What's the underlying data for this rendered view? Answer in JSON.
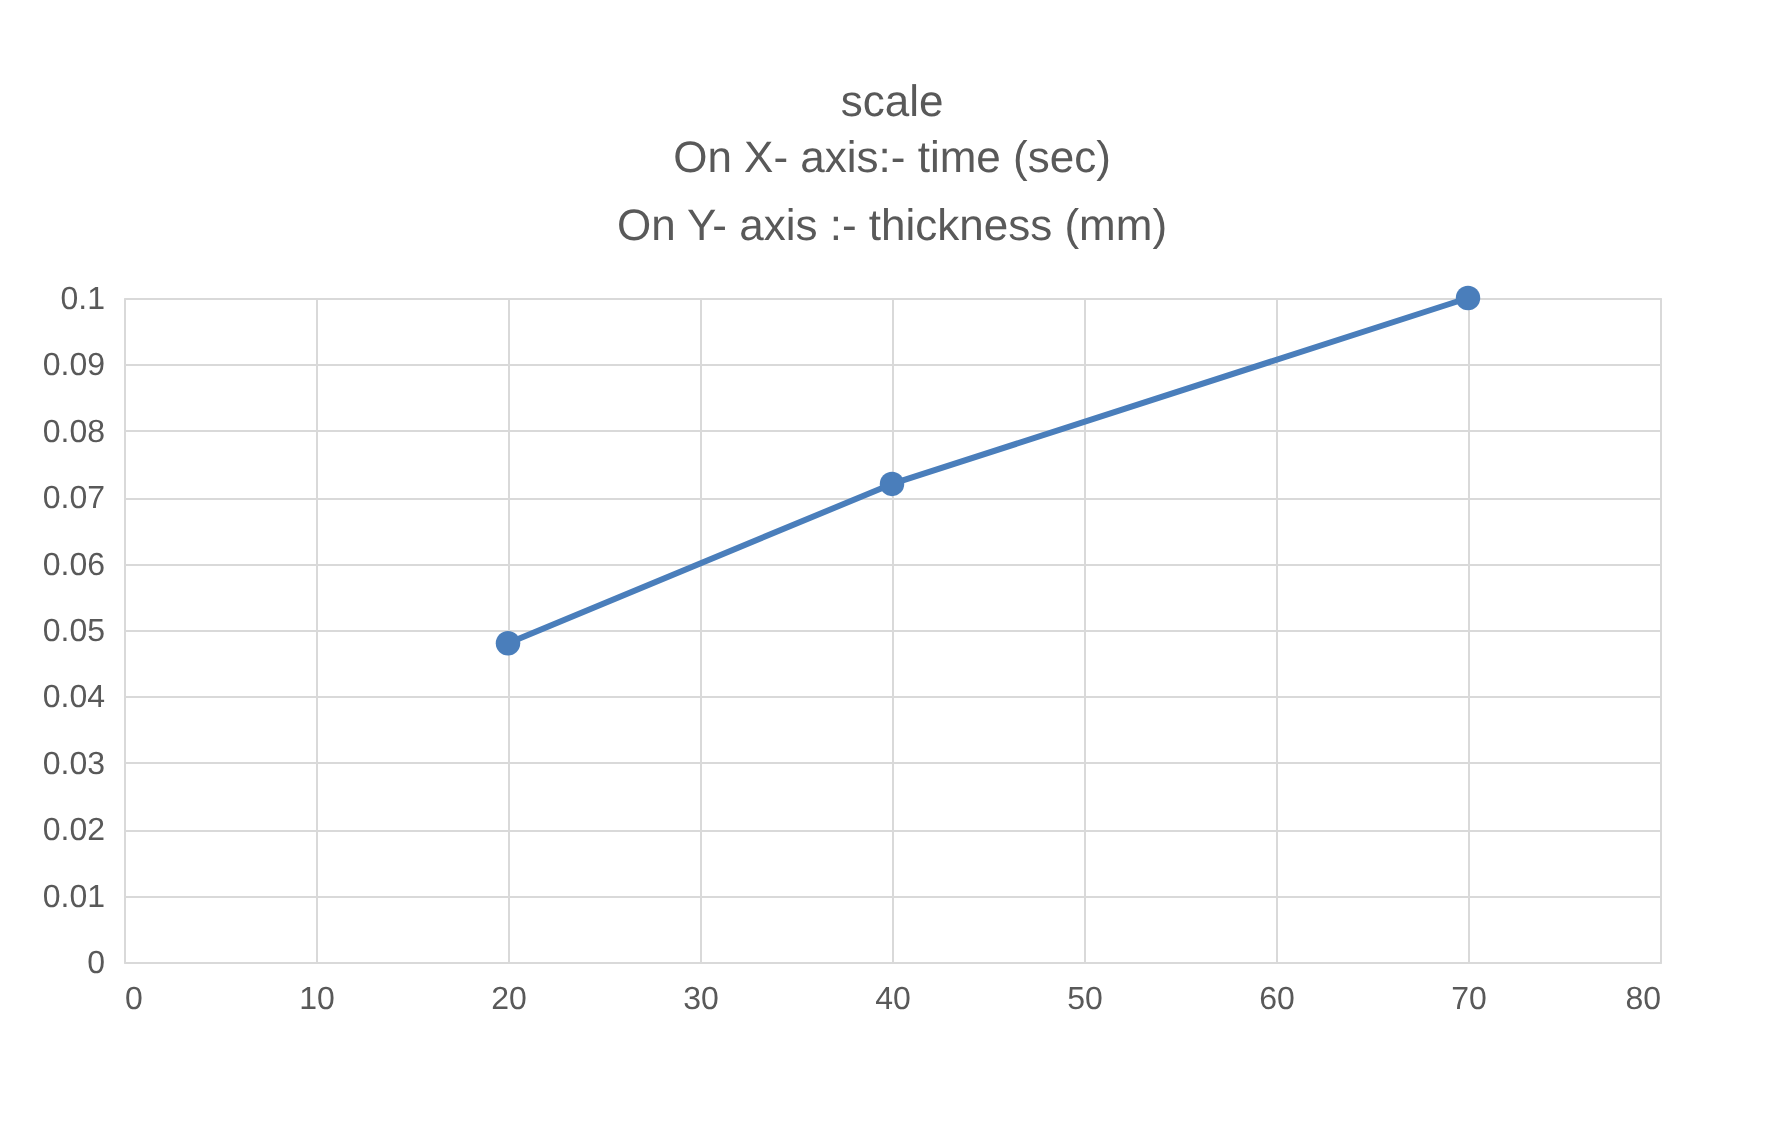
{
  "chart_data": {
    "type": "line",
    "title": "scale",
    "subtitle": "On X- axis:- time (sec)\nOn Y- axis :- thickness (mm)",
    "x": [
      20,
      40,
      70
    ],
    "series": [
      {
        "color": "#4a7ebb",
        "values": [
          0.048,
          0.072,
          0.1
        ]
      }
    ],
    "xlim": [
      0,
      80
    ],
    "xticks": [
      0,
      10,
      20,
      30,
      40,
      50,
      60,
      70,
      80
    ],
    "ylim": [
      0,
      0.1
    ],
    "yticks": [
      0,
      0.01,
      0.02,
      0.03,
      0.04,
      0.05,
      0.06,
      0.07,
      0.08,
      0.09,
      0.1
    ],
    "grid": true,
    "marker": "circle",
    "line_style": "solid"
  }
}
